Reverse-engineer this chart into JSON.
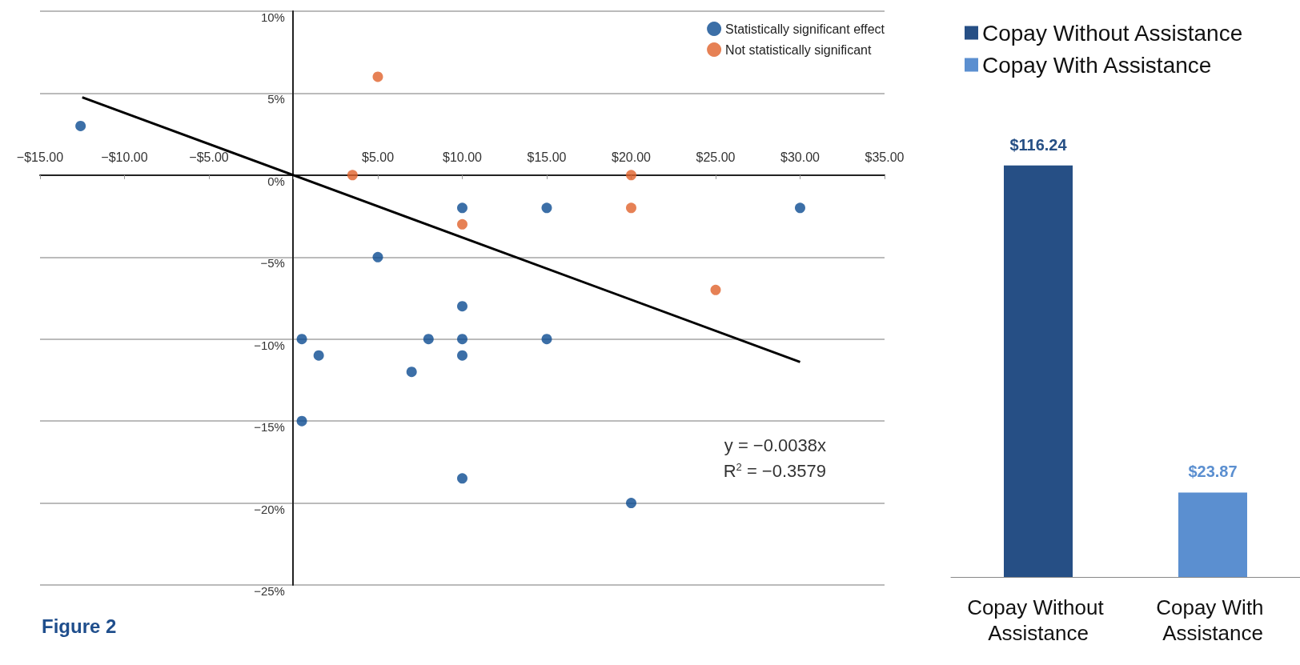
{
  "chart_data": [
    {
      "type": "scatter",
      "xlim": [
        -15,
        35
      ],
      "xticks": [
        {
          "value": -15,
          "label": "−$15.00"
        },
        {
          "value": -10,
          "label": "−$10.00"
        },
        {
          "value": -5,
          "label": "−$5.00"
        },
        {
          "value": 0,
          "label": null
        },
        {
          "value": 5,
          "label": "$5.00"
        },
        {
          "value": 10,
          "label": "$10.00"
        },
        {
          "value": 15,
          "label": "$15.00"
        },
        {
          "value": 20,
          "label": "$20.00"
        },
        {
          "value": 25,
          "label": "$25.00"
        },
        {
          "value": 30,
          "label": "$30.00"
        },
        {
          "value": 35,
          "label": "$35.00"
        }
      ],
      "ylim": [
        -25,
        10
      ],
      "yticks": [
        {
          "value": -25,
          "label": "−25%"
        },
        {
          "value": -20,
          "label": "−20%"
        },
        {
          "value": -15,
          "label": "−15%"
        },
        {
          "value": -10,
          "label": "−10%"
        },
        {
          "value": -5,
          "label": "−5%"
        },
        {
          "value": 0,
          "label": "0%"
        },
        {
          "value": 5,
          "label": "5%"
        },
        {
          "value": 10,
          "label": "10%"
        }
      ],
      "grid": "y",
      "legend": "top right",
      "marker": "circle",
      "series": [
        {
          "name": "Statistically significant effect",
          "color": "#0b4b91",
          "x": [
            -12.6,
            10,
            15,
            30,
            5,
            10,
            0.5,
            1.5,
            8,
            10,
            10,
            15,
            7,
            0.5,
            10,
            20
          ],
          "values": [
            3,
            -2,
            -2,
            -2,
            -5,
            -8,
            -10,
            -11,
            -10,
            -10,
            -11,
            -10,
            -12,
            -15,
            -18.5,
            -20
          ]
        },
        {
          "name": "Not statistically significant",
          "color": "#e0622a",
          "x": [
            5,
            3.5,
            20,
            20,
            10,
            25
          ],
          "values": [
            6,
            0,
            0,
            -2,
            -3,
            -7
          ]
        },
        {
          "type": "line",
          "color": "#000000",
          "marker": "none",
          "x": [
            -12.5,
            30
          ],
          "values": [
            4.75,
            -11.4
          ]
        }
      ],
      "annotations": [
        "y = −0.0038x",
        "R$^{2}$ = −0.3579",
        "Figure 2"
      ]
    },
    {
      "type": "bar",
      "categories": [
        "Copay Without Assistance",
        "Copay With Assistance"
      ],
      "series": [
        {
          "name": "Copay Without Assistance",
          "color": "#264f85",
          "values": [
            116.24,
            null
          ],
          "value_labels": [
            "$116.24",
            null
          ]
        },
        {
          "name": "Copay With Assistance",
          "color": "#5b8fd0",
          "values": [
            null,
            23.87
          ],
          "value_labels": [
            null,
            "$23.87"
          ]
        }
      ],
      "legend": "top"
    }
  ]
}
